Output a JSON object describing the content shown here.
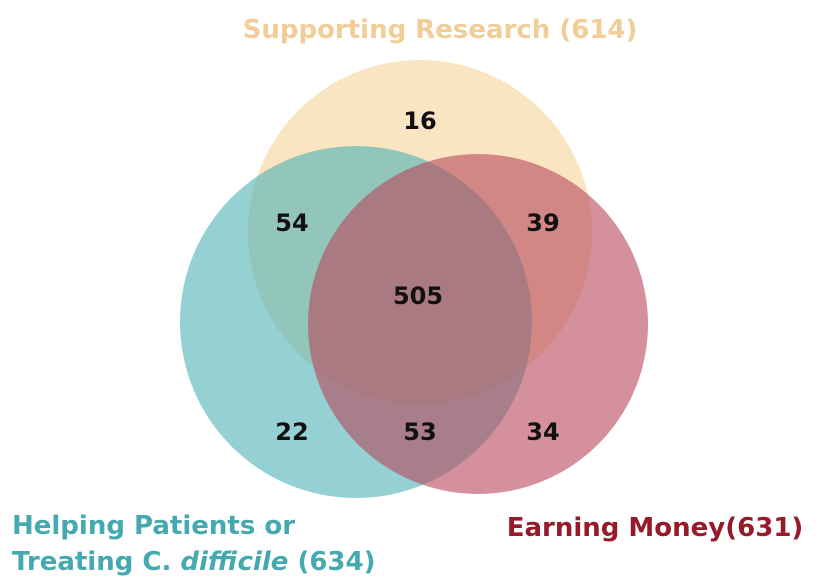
{
  "chart_data": {
    "type": "venn",
    "sets": [
      {
        "label": [
          [
            "Supporting Research (614)"
          ]
        ],
        "color": "#f7d49a"
      },
      {
        "label": [
          [
            "Helping Patients or"
          ],
          [
            "Treating C. ",
            "difficile",
            " (634)"
          ]
        ],
        "color": "#4fb0b4"
      },
      {
        "label": [
          [
            "Earning Money(631)"
          ]
        ],
        "color": "#b8475c"
      }
    ],
    "label_colors": [
      "#f2cd97",
      "#45a9b0",
      "#951b2b"
    ],
    "regions": [
      {
        "sets": [
          0
        ],
        "value": 16
      },
      {
        "sets": [
          0,
          1
        ],
        "value": 54
      },
      {
        "sets": [
          0,
          2
        ],
        "value": 39
      },
      {
        "sets": [
          0,
          1,
          2
        ],
        "value": 505
      },
      {
        "sets": [
          1
        ],
        "value": 22
      },
      {
        "sets": [
          1,
          2
        ],
        "value": 53
      },
      {
        "sets": [
          2
        ],
        "value": 34
      }
    ]
  }
}
